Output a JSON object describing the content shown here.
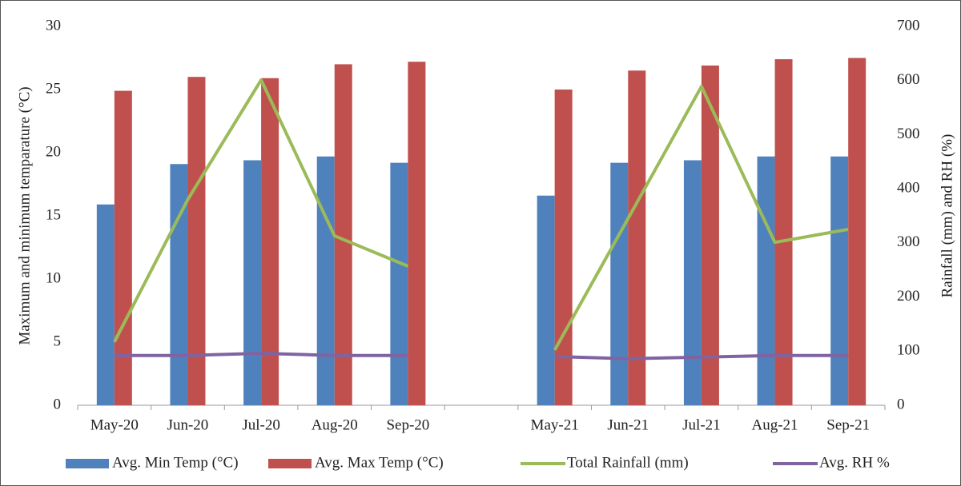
{
  "chart_data": {
    "type": "bar",
    "y_label": "Maximum and minimum temparature (°C)",
    "y2_label": "Rainfall (mm) and RH (%)",
    "categories": [
      "May-20",
      "Jun-20",
      "Jul-20",
      "Aug-20",
      "Sep-20",
      null,
      "May-21",
      "Jun-21",
      "Jul-21",
      "Aug-21",
      "Sep-21"
    ],
    "ylim": [
      0,
      30
    ],
    "yticks": [
      0,
      5,
      10,
      15,
      20,
      25,
      30
    ],
    "y2lim": [
      0,
      700
    ],
    "y2ticks": [
      0,
      100,
      200,
      300,
      400,
      500,
      600,
      700
    ],
    "grid": false,
    "legend": "bottom",
    "series": [
      {
        "name": "Avg. Min Temp (°C)",
        "type": "bar",
        "color": "#4f81bd",
        "values": [
          15.9,
          19.1,
          19.4,
          19.7,
          19.2,
          null,
          16.6,
          19.2,
          19.4,
          19.7,
          19.7
        ]
      },
      {
        "name": "Avg. Max Temp (°C)",
        "type": "bar",
        "color": "#c0504d",
        "values": [
          24.9,
          26.0,
          25.9,
          27.0,
          27.2,
          null,
          25.0,
          26.5,
          26.9,
          27.4,
          27.5
        ]
      },
      {
        "name": "Total Rainfall (mm)",
        "type": "line",
        "axis": "y2",
        "color": "#9bbb59",
        "values": [
          117,
          380,
          601,
          313,
          257,
          null,
          102,
          345,
          589,
          301,
          325
        ]
      },
      {
        "name": "Avg. RH %",
        "type": "line",
        "axis": "y2",
        "color": "#8064a2",
        "values": [
          92,
          92,
          96,
          92,
          92,
          null,
          90,
          86,
          89,
          92,
          92
        ]
      }
    ]
  }
}
